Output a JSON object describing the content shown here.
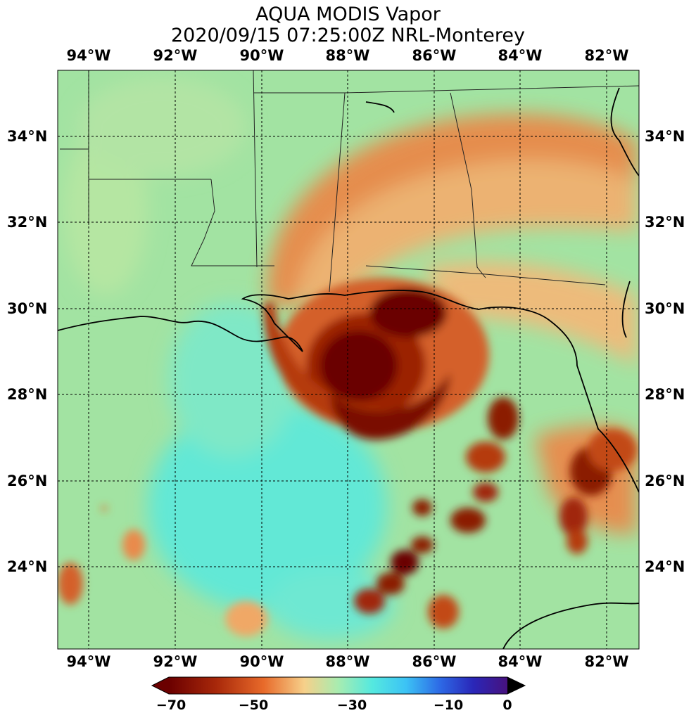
{
  "title": {
    "line1": "AQUA MODIS Vapor",
    "line2": "2020/09/15 07:25:00Z NRL-Monterey"
  },
  "axes": {
    "longitude_labels": [
      "94°W",
      "92°W",
      "90°W",
      "88°W",
      "86°W",
      "84°W",
      "82°W"
    ],
    "latitude_labels": [
      "34°N",
      "32°N",
      "30°N",
      "28°N",
      "26°N",
      "24°N"
    ],
    "lon_range": [
      -94.7,
      -81.3
    ],
    "lat_range": [
      22.1,
      35.6
    ],
    "gridlines": "dashed"
  },
  "colorbar": {
    "ticks": [
      "−70",
      "−50",
      "−30",
      "−10",
      "0"
    ],
    "range": [
      -70,
      0
    ],
    "colors": [
      "#6b0000",
      "#c23b06",
      "#f28c3b",
      "#f6d58f",
      "#9ee8a8",
      "#5fe3d6",
      "#49d3f5",
      "#2f74e8",
      "#3a1ea8",
      "#4a1480"
    ]
  },
  "colors": {
    "background_field": "#9fe3a0",
    "clear_air": "#5fe8d8",
    "storm_core": "#6b0000",
    "storm_band": "#d4612a",
    "coastline": "#000000"
  }
}
